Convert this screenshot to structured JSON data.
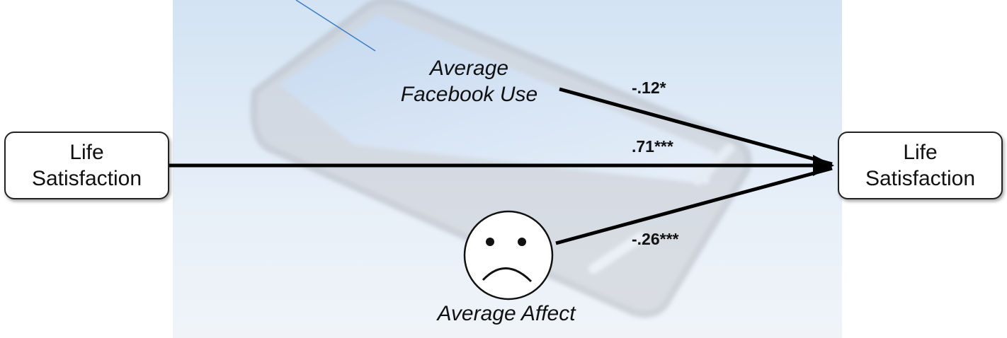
{
  "nodes": {
    "predictor_life_satisfaction": {
      "line1": "Life",
      "line2": "Satisfaction"
    },
    "outcome_life_satisfaction": {
      "line1": "Life",
      "line2": "Satisfaction"
    },
    "facebook_use": {
      "line1": "Average",
      "line2": "Facebook Use"
    },
    "affect": {
      "label": "Average Affect",
      "icon": "sad-face-icon"
    }
  },
  "paths": {
    "facebook_use_to_outcome": "-.12*",
    "life_satisfaction_to_outcome": ".71***",
    "affect_to_outcome": "-.26***"
  },
  "background": {
    "image": "smartphone-watermark",
    "tint": "#d8e6f4"
  }
}
